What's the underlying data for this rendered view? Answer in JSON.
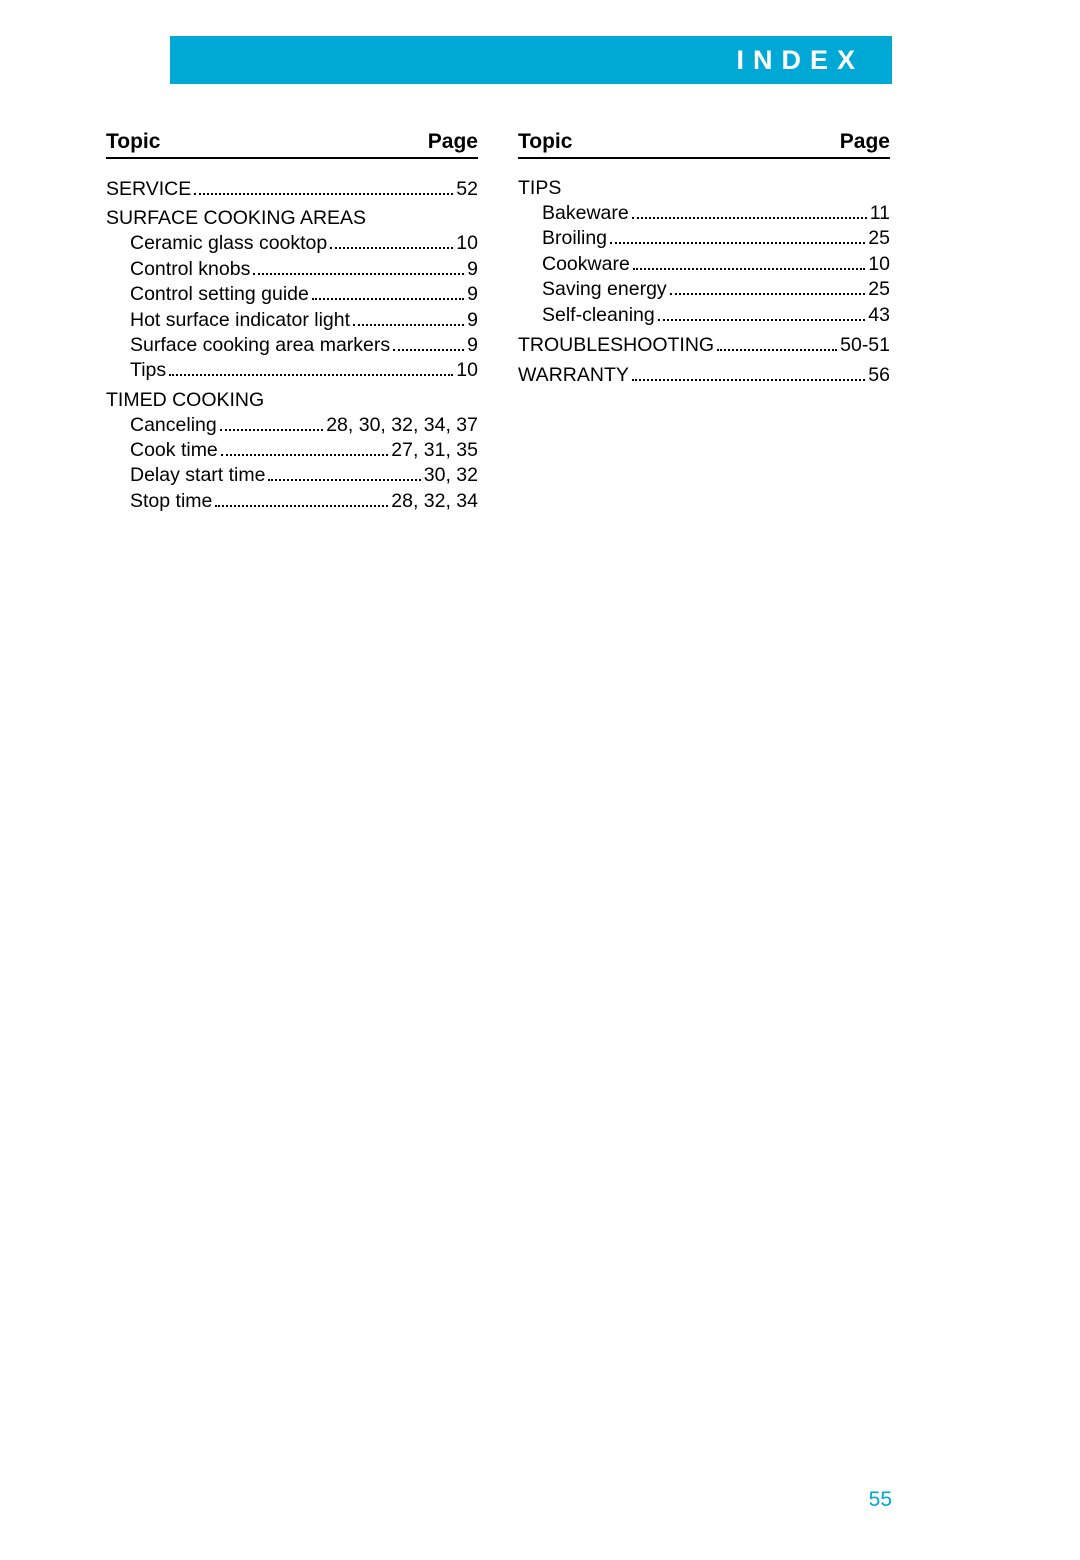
{
  "banner": {
    "title": "INDEX"
  },
  "columns": {
    "header_topic": "Topic",
    "header_page": "Page"
  },
  "left": {
    "service": {
      "label": "Service",
      "page": "52"
    },
    "surface_cooking_areas": {
      "title": "Surface Cooking Areas",
      "items": [
        {
          "label": "Ceramic glass cooktop",
          "page": "10"
        },
        {
          "label": "Control knobs",
          "page": "9"
        },
        {
          "label": "Control setting guide",
          "page": "9"
        },
        {
          "label": "Hot surface indicator light",
          "page": "9"
        },
        {
          "label": "Surface cooking area markers",
          "page": "9"
        },
        {
          "label": "Tips",
          "page": "10"
        }
      ]
    },
    "timed_cooking": {
      "title": "Timed Cooking",
      "items": [
        {
          "label": "Canceling",
          "page": "28, 30, 32, 34, 37"
        },
        {
          "label": "Cook time",
          "page": "27, 31, 35"
        },
        {
          "label": "Delay start time",
          "page": "30, 32"
        },
        {
          "label": "Stop time",
          "page": "28, 32, 34"
        }
      ]
    }
  },
  "right": {
    "tips": {
      "title": "Tips",
      "items": [
        {
          "label": "Bakeware",
          "page": "11"
        },
        {
          "label": "Broiling",
          "page": "25"
        },
        {
          "label": "Cookware",
          "page": "10"
        },
        {
          "label": "Saving energy",
          "page": "25"
        },
        {
          "label": "Self-cleaning",
          "page": "43"
        }
      ]
    },
    "troubleshooting": {
      "label": "Troubleshooting",
      "page": "50-51"
    },
    "warranty": {
      "label": "Warranty",
      "page": "56"
    }
  },
  "page_number": "55",
  "colors": {
    "accent": "#00a8d6",
    "text": "#000000",
    "background": "#ffffff"
  }
}
